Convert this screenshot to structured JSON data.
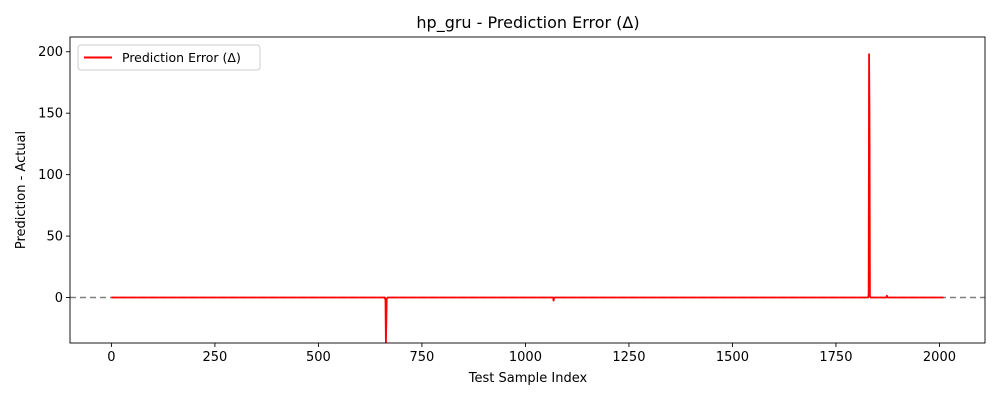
{
  "chart_data": {
    "type": "line",
    "title": "hp_gru - Prediction Error (Δ)",
    "xlabel": "Test Sample Index",
    "ylabel": "Prediction - Actual",
    "xlim": [
      -100,
      2110
    ],
    "ylim": [
      -37,
      212
    ],
    "xticks": [
      0,
      250,
      500,
      750,
      1000,
      1250,
      1500,
      1750,
      2000
    ],
    "yticks": [
      0,
      50,
      100,
      150,
      200
    ],
    "grid": false,
    "legend_position": "upper-left",
    "reference_line": {
      "y": 0,
      "style": "dashed",
      "color": "#808080"
    },
    "series": [
      {
        "name": "Prediction Error (Δ)",
        "color": "#ff0000",
        "points": [
          [
            0,
            0.0
          ],
          [
            660,
            0.0
          ],
          [
            662,
            -2.0
          ],
          [
            663,
            -36.5
          ],
          [
            664,
            -20.0
          ],
          [
            665,
            -1.0
          ],
          [
            667,
            0.0
          ],
          [
            1067,
            0.0
          ],
          [
            1068,
            -2.5
          ],
          [
            1069,
            -0.5
          ],
          [
            1071,
            0.0
          ],
          [
            1828,
            0.0
          ],
          [
            1829,
            3.0
          ],
          [
            1830,
            198.0
          ],
          [
            1831,
            150.0
          ],
          [
            1832,
            1.0
          ],
          [
            1834,
            0.0
          ],
          [
            1872,
            0.0
          ],
          [
            1873,
            1.5
          ],
          [
            1875,
            0.0
          ],
          [
            2010,
            0.0
          ]
        ]
      }
    ]
  }
}
